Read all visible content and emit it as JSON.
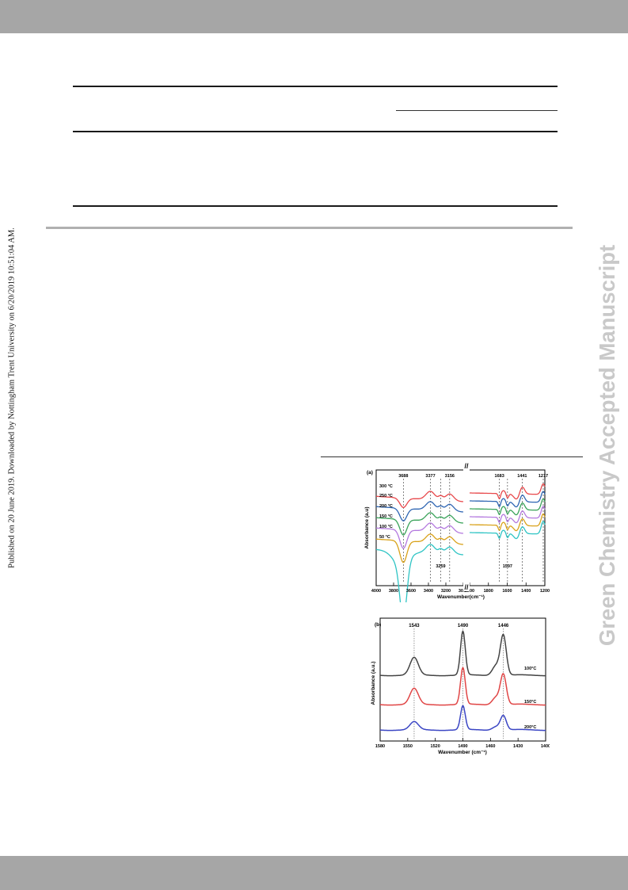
{
  "side_note": "Published on 20 June 2019. Downloaded by Nottingham Trent University on 6/20/2019 10:51:04 AM.",
  "watermark": "Green Chemistry Accepted Manuscript",
  "chart_data": [
    {
      "type": "line",
      "panel_label": "(a)",
      "xlabel": "Wavenumber(cm⁻¹)",
      "ylabel": "Absorbance (a.u)",
      "xlim_left": [
        4000,
        2000
      ],
      "xlim_right": [
        2000,
        1200
      ],
      "x_ticks": [
        "4000",
        "3800",
        "3600",
        "3400",
        "3200",
        "3000",
        "2000",
        "1800",
        "1600",
        "1400",
        "1200"
      ],
      "axis_break": "//",
      "grid": false,
      "series": [
        {
          "name": "300 °C",
          "color": "#e8484b"
        },
        {
          "name": "250 °C",
          "color": "#2f66b3"
        },
        {
          "name": "200 °C",
          "color": "#3aa35a"
        },
        {
          "name": "150 °C",
          "color": "#b47adf"
        },
        {
          "name": "100 °C",
          "color": "#d9a21b"
        },
        {
          "name": "50 °C",
          "color": "#2ec4c4"
        }
      ],
      "annotations": [
        "3688",
        "3377",
        "3156",
        "3259",
        "1683",
        "1441",
        "1217",
        "1597"
      ]
    },
    {
      "type": "line",
      "panel_label": "(b)",
      "xlabel": "Wavenumber (cm⁻¹)",
      "ylabel": "Absorbance (a.u.)",
      "xlim": [
        1580,
        1400
      ],
      "x_ticks": [
        "1580",
        "1550",
        "1520",
        "1490",
        "1460",
        "1430",
        "1400"
      ],
      "grid": false,
      "series": [
        {
          "name": "100°C",
          "color": "#444444"
        },
        {
          "name": "150°C",
          "color": "#e04545"
        },
        {
          "name": "200°C",
          "color": "#3b46c4"
        }
      ],
      "peaks": [
        1543,
        1490,
        1446
      ],
      "annotations": [
        "1543",
        "1490",
        "1446"
      ]
    }
  ]
}
